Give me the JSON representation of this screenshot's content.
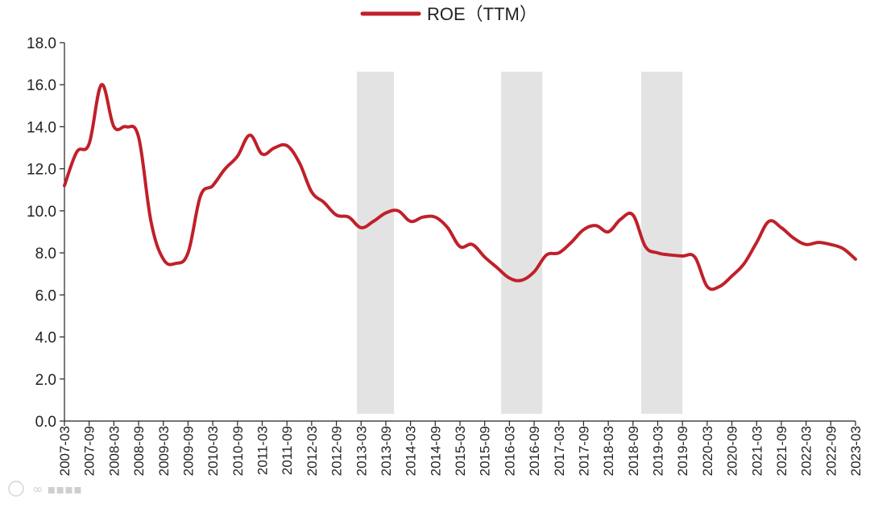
{
  "chart_data": {
    "type": "line",
    "title": "",
    "xlabel": "",
    "ylabel": "",
    "legend": {
      "position": "top-center",
      "entries": [
        "ROE（TTM）"
      ]
    },
    "ylim": [
      0,
      18
    ],
    "yticks": [
      "0.0",
      "2.0",
      "4.0",
      "6.0",
      "8.0",
      "10.0",
      "12.0",
      "14.0",
      "16.0",
      "18.0"
    ],
    "x_tick_labels": [
      "2007-03",
      "2007-09",
      "2008-03",
      "2008-09",
      "2009-03",
      "2009-09",
      "2010-03",
      "2010-09",
      "2011-03",
      "2011-09",
      "2012-03",
      "2012-09",
      "2013-03",
      "2013-09",
      "2014-03",
      "2014-09",
      "2015-03",
      "2015-09",
      "2016-03",
      "2016-09",
      "2017-03",
      "2017-09",
      "2018-03",
      "2018-09",
      "2019-03",
      "2019-09",
      "2020-03",
      "2020-09",
      "2021-03",
      "2021-09",
      "2022-03",
      "2022-09",
      "2023-03"
    ],
    "grid": false,
    "line_color": "#c0202a",
    "band_color": "#e3e3e3",
    "shaded_periods": [
      {
        "start": "2013-02",
        "end": "2013-11"
      },
      {
        "start": "2016-01",
        "end": "2016-11"
      },
      {
        "start": "2018-11",
        "end": "2019-09"
      }
    ],
    "series": [
      {
        "name": "ROE（TTM）",
        "points": [
          [
            "2007-03",
            11.2
          ],
          [
            "2007-06",
            12.8
          ],
          [
            "2007-09",
            13.2
          ],
          [
            "2007-12",
            16.0
          ],
          [
            "2008-03",
            14.0
          ],
          [
            "2008-06",
            14.0
          ],
          [
            "2008-09",
            13.5
          ],
          [
            "2008-12",
            9.5
          ],
          [
            "2009-03",
            7.7
          ],
          [
            "2009-06",
            7.5
          ],
          [
            "2009-09",
            8.0
          ],
          [
            "2009-12",
            10.7
          ],
          [
            "2010-03",
            11.2
          ],
          [
            "2010-06",
            12.0
          ],
          [
            "2010-09",
            12.6
          ],
          [
            "2010-12",
            13.6
          ],
          [
            "2011-03",
            12.7
          ],
          [
            "2011-06",
            13.0
          ],
          [
            "2011-09",
            13.1
          ],
          [
            "2011-12",
            12.3
          ],
          [
            "2012-03",
            10.9
          ],
          [
            "2012-06",
            10.4
          ],
          [
            "2012-09",
            9.8
          ],
          [
            "2012-12",
            9.7
          ],
          [
            "2013-03",
            9.2
          ],
          [
            "2013-06",
            9.5
          ],
          [
            "2013-09",
            9.9
          ],
          [
            "2013-12",
            10.0
          ],
          [
            "2014-03",
            9.5
          ],
          [
            "2014-06",
            9.7
          ],
          [
            "2014-09",
            9.7
          ],
          [
            "2014-12",
            9.2
          ],
          [
            "2015-03",
            8.3
          ],
          [
            "2015-06",
            8.4
          ],
          [
            "2015-09",
            7.8
          ],
          [
            "2015-12",
            7.3
          ],
          [
            "2016-03",
            6.8
          ],
          [
            "2016-06",
            6.7
          ],
          [
            "2016-09",
            7.1
          ],
          [
            "2016-12",
            7.9
          ],
          [
            "2017-03",
            8.0
          ],
          [
            "2017-06",
            8.5
          ],
          [
            "2017-09",
            9.1
          ],
          [
            "2017-12",
            9.3
          ],
          [
            "2018-03",
            9.0
          ],
          [
            "2018-06",
            9.6
          ],
          [
            "2018-09",
            9.8
          ],
          [
            "2018-12",
            8.3
          ],
          [
            "2019-03",
            8.0
          ],
          [
            "2019-06",
            7.9
          ],
          [
            "2019-09",
            7.85
          ],
          [
            "2019-12",
            7.8
          ],
          [
            "2020-03",
            6.4
          ],
          [
            "2020-06",
            6.4
          ],
          [
            "2020-09",
            6.9
          ],
          [
            "2020-12",
            7.5
          ],
          [
            "2021-03",
            8.5
          ],
          [
            "2021-06",
            9.5
          ],
          [
            "2021-09",
            9.2
          ],
          [
            "2021-12",
            8.7
          ],
          [
            "2022-03",
            8.4
          ],
          [
            "2022-06",
            8.5
          ],
          [
            "2022-09",
            8.4
          ],
          [
            "2022-12",
            8.2
          ],
          [
            "2023-03",
            7.7
          ]
        ]
      }
    ]
  }
}
